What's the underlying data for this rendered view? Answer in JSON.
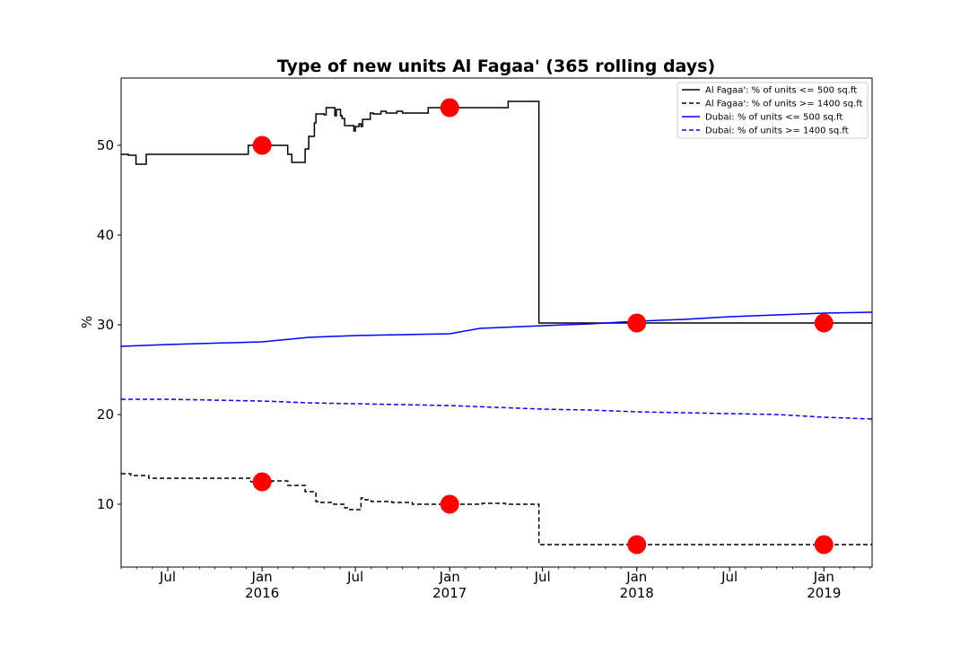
{
  "chart_data": {
    "type": "line",
    "title": "Type of new units Al Fagaa' (365 rolling days)",
    "xlabel": "",
    "ylabel": "%",
    "ylim": [
      3,
      57.5
    ],
    "xlim": [
      "2015-04-01",
      "2019-04-05"
    ],
    "grid": false,
    "legend_position": "top-right",
    "yticks": [
      10,
      20,
      30,
      40,
      50
    ],
    "xticks": [
      {
        "date": "2015-07-01",
        "label": "Jul",
        "sublabel": ""
      },
      {
        "date": "2016-01-01",
        "label": "Jan",
        "sublabel": "2016"
      },
      {
        "date": "2016-07-01",
        "label": "Jul",
        "sublabel": ""
      },
      {
        "date": "2017-01-01",
        "label": "Jan",
        "sublabel": "2017"
      },
      {
        "date": "2017-07-01",
        "label": "Jul",
        "sublabel": ""
      },
      {
        "date": "2018-01-01",
        "label": "Jan",
        "sublabel": "2018"
      },
      {
        "date": "2018-07-01",
        "label": "Jul",
        "sublabel": ""
      },
      {
        "date": "2019-01-01",
        "label": "Jan",
        "sublabel": "2019"
      }
    ],
    "series": [
      {
        "name": "Al Fagaa': % of units <= 500 sq.ft",
        "color": "#000000",
        "dash": "solid",
        "step": true,
        "x": [
          "2015-04-01",
          "2015-04-15",
          "2015-04-30",
          "2015-05-20",
          "2015-12-05",
          "2016-02-20",
          "2016-02-28",
          "2016-03-25",
          "2016-04-01",
          "2016-04-12",
          "2016-04-15",
          "2016-05-01",
          "2016-05-05",
          "2016-05-22",
          "2016-05-25",
          "2016-06-02",
          "2016-06-05",
          "2016-06-10",
          "2016-06-28",
          "2016-07-01",
          "2016-07-08",
          "2016-07-12",
          "2016-07-15",
          "2016-07-30",
          "2016-08-05",
          "2016-08-20",
          "2016-08-30",
          "2016-09-10",
          "2016-09-20",
          "2016-10-01",
          "2016-11-20",
          "2016-12-25",
          "2017-02-15",
          "2017-04-25",
          "2017-06-24",
          "2019-04-05"
        ],
        "y": [
          49,
          48.9,
          47.9,
          49,
          50,
          49,
          48.1,
          49.6,
          51,
          52.5,
          53.5,
          53.4,
          54.2,
          53.3,
          54,
          53.3,
          53,
          52.2,
          51.6,
          52.1,
          52.4,
          52.1,
          52.9,
          53.6,
          53.5,
          53.8,
          53.6,
          53.6,
          53.8,
          53.6,
          54.2,
          54.2,
          54.2,
          54.9,
          30.2,
          30.2
        ]
      },
      {
        "name": "Al Fagaa': % of units >= 1400 sq.ft",
        "color": "#000000",
        "dash": "dashed",
        "step": true,
        "x": [
          "2015-04-01",
          "2015-04-20",
          "2015-05-25",
          "2015-12-10",
          "2016-01-20",
          "2016-02-20",
          "2016-03-25",
          "2016-04-15",
          "2016-04-25",
          "2016-05-20",
          "2016-06-10",
          "2016-06-20",
          "2016-07-12",
          "2016-07-20",
          "2016-08-01",
          "2016-09-10",
          "2016-10-20",
          "2017-03-05",
          "2017-04-20",
          "2017-06-24",
          "2019-04-05"
        ],
        "y": [
          13.4,
          13.2,
          12.9,
          12.5,
          12.6,
          12.1,
          11.4,
          10.3,
          10.2,
          10,
          9.6,
          9.4,
          10.7,
          10.5,
          10.3,
          10.2,
          10,
          10.1,
          10,
          5.5,
          5.5
        ]
      },
      {
        "name": "Dubai: % of units <= 500 sq.ft",
        "color": "#0000ff",
        "dash": "solid",
        "step": false,
        "x": [
          "2015-04-01",
          "2015-07-01",
          "2016-01-01",
          "2016-04-01",
          "2016-07-01",
          "2016-10-01",
          "2017-01-01",
          "2017-03-01",
          "2017-07-01",
          "2017-10-01",
          "2018-01-01",
          "2018-04-01",
          "2018-07-01",
          "2018-10-01",
          "2019-01-01",
          "2019-04-05"
        ],
        "y": [
          27.6,
          27.8,
          28.1,
          28.6,
          28.8,
          28.9,
          29,
          29.6,
          29.9,
          30.1,
          30.4,
          30.6,
          30.9,
          31.1,
          31.3,
          31.4
        ]
      },
      {
        "name": "Dubai: % of units >= 1400 sq.ft",
        "color": "#0000ff",
        "dash": "dashed",
        "step": false,
        "x": [
          "2015-04-01",
          "2015-07-01",
          "2016-01-01",
          "2016-04-01",
          "2016-07-01",
          "2016-10-01",
          "2017-01-01",
          "2017-04-01",
          "2017-07-01",
          "2017-10-01",
          "2018-01-01",
          "2018-04-01",
          "2018-07-01",
          "2018-10-01",
          "2019-01-01",
          "2019-04-05"
        ],
        "y": [
          21.7,
          21.7,
          21.5,
          21.3,
          21.2,
          21.1,
          21.0,
          20.8,
          20.6,
          20.5,
          20.3,
          20.2,
          20.1,
          20.0,
          19.7,
          19.5
        ]
      }
    ],
    "markers": {
      "color": "#ff0000",
      "points": [
        {
          "x": "2016-01-01",
          "y": 50
        },
        {
          "x": "2017-01-01",
          "y": 54.2
        },
        {
          "x": "2018-01-01",
          "y": 30.2
        },
        {
          "x": "2019-01-01",
          "y": 30.2
        },
        {
          "x": "2016-01-01",
          "y": 12.5
        },
        {
          "x": "2017-01-01",
          "y": 10
        },
        {
          "x": "2018-01-01",
          "y": 5.5
        },
        {
          "x": "2019-01-01",
          "y": 5.5
        }
      ]
    }
  }
}
